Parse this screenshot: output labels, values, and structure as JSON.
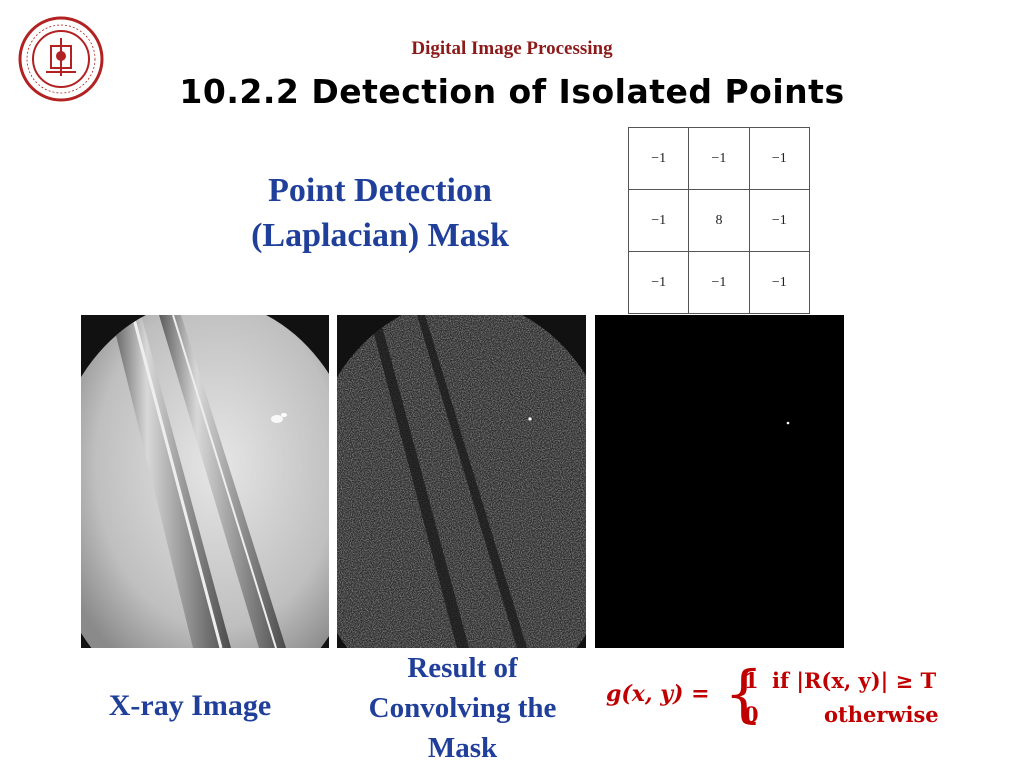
{
  "header": {
    "course": "Digital Image Processing"
  },
  "slide": {
    "title": "10.2.2 Detection of Isolated Points",
    "subtitle_line1": "Point Detection",
    "subtitle_line2": "(Laplacian) Mask"
  },
  "mask": {
    "rows": [
      [
        "−1",
        "−1",
        "−1"
      ],
      [
        "−1",
        "8",
        "−1"
      ],
      [
        "−1",
        "−1",
        "−1"
      ]
    ]
  },
  "captions": {
    "xray": "X-ray Image",
    "result_line1": "Result of",
    "result_line2": "Convolving the",
    "result_line3": "Mask"
  },
  "formula": {
    "lhs": "g(x, y) =",
    "case1_value": "1",
    "case1_condition": "if |R(x, y)| ≥ T",
    "case2_value": "0",
    "case2_condition": "otherwise"
  },
  "colors": {
    "header": "#8b1a1a",
    "subtitle": "#1f3f9a",
    "formula": "#c00000"
  },
  "icons": {
    "logo": "university-seal-icon"
  }
}
